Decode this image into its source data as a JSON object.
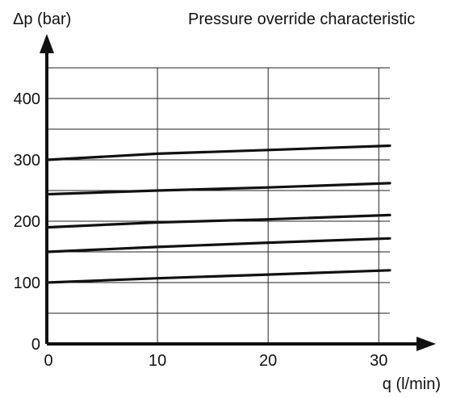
{
  "chart_data": {
    "type": "line",
    "title": "Pressure override characteristic",
    "ylabel": "Δp (bar)",
    "xlabel": "q (l/min)",
    "xlim": [
      0,
      31
    ],
    "ylim": [
      0,
      450
    ],
    "x_ticks": [
      0,
      10,
      20,
      30
    ],
    "y_ticks": [
      0,
      100,
      200,
      300,
      400
    ],
    "x_gridlines": [
      10,
      20,
      30
    ],
    "y_gridlines": [
      50,
      100,
      150,
      200,
      250,
      300,
      350,
      400,
      450
    ],
    "legend": "none",
    "series": [
      {
        "x": [
          0,
          10,
          20,
          31
        ],
        "values": [
          300,
          310,
          316,
          323
        ]
      },
      {
        "x": [
          0,
          10,
          20,
          31
        ],
        "values": [
          244,
          250,
          255,
          262
        ]
      },
      {
        "x": [
          0,
          10,
          20,
          31
        ],
        "values": [
          190,
          198,
          203,
          210
        ]
      },
      {
        "x": [
          0,
          10,
          20,
          31
        ],
        "values": [
          150,
          158,
          165,
          172
        ]
      },
      {
        "x": [
          0,
          10,
          20,
          31
        ],
        "values": [
          100,
          107,
          113,
          120
        ]
      }
    ]
  }
}
